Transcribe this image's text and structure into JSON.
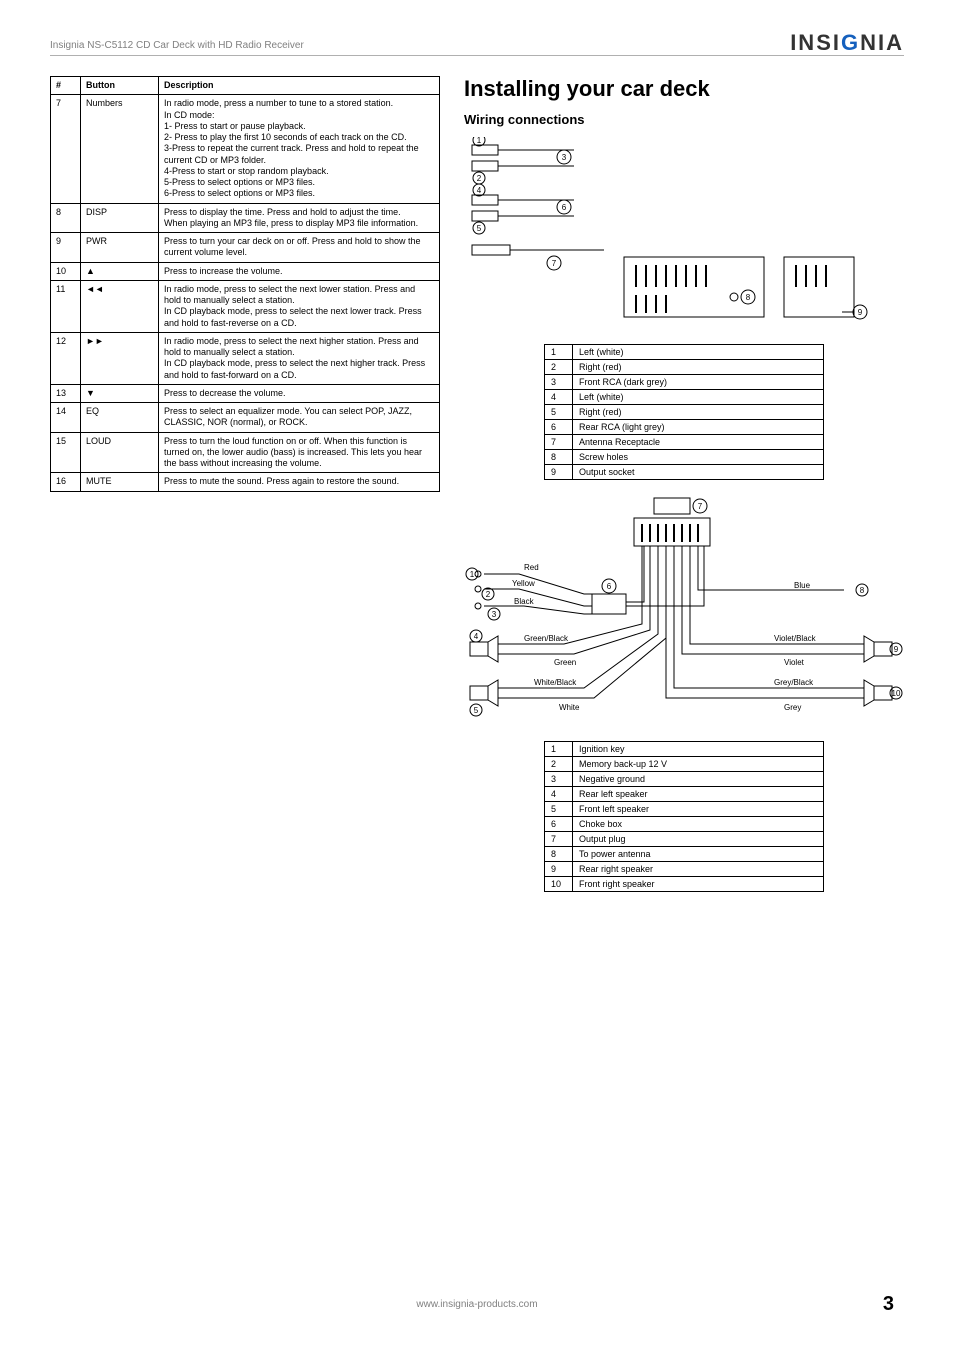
{
  "header": {
    "product_line": "Insignia NS-C5112 CD Car Deck with HD Radio Receiver",
    "brand_pre": "INSI",
    "brand_g": "G",
    "brand_post": "NIA"
  },
  "buttons_table": {
    "headers": [
      "#",
      "Button",
      "Description"
    ],
    "rows": [
      {
        "n": "7",
        "btn": "Numbers",
        "desc": "In radio mode, press a number to tune to a stored station.\nIn CD mode:\n1- Press to start or pause playback.\n2- Press to play the first 10 seconds of each track on the CD.\n3-Press to repeat the current track. Press and hold to repeat the current CD or MP3 folder.\n4-Press to start or stop random playback.\n5-Press to select options or MP3 files.\n6-Press to select options or MP3 files."
      },
      {
        "n": "8",
        "btn": "DISP",
        "desc": "Press to display the time. Press and hold to adjust the time.\nWhen playing an MP3 file, press to display MP3 file information."
      },
      {
        "n": "9",
        "btn": "PWR",
        "desc": "Press to turn your car deck on or off. Press and hold to show the current volume level."
      },
      {
        "n": "10",
        "btn": "▲",
        "desc": "Press to increase the volume."
      },
      {
        "n": "11",
        "btn": "◄◄",
        "desc": "In radio mode, press to select the next lower station. Press and hold to manually select a station.\nIn CD playback mode, press to select the next lower track. Press and hold to fast-reverse on a CD."
      },
      {
        "n": "12",
        "btn": "►►",
        "desc": "In radio mode, press to select the next higher station. Press and hold to manually select a station.\nIn CD playback mode, press to select the next higher track. Press and hold to fast-forward on a CD."
      },
      {
        "n": "13",
        "btn": "▼",
        "desc": "Press to decrease the volume."
      },
      {
        "n": "14",
        "btn": "EQ",
        "desc": "Press to select an equalizer mode. You can select POP, JAZZ, CLASSIC, NOR (normal), or ROCK."
      },
      {
        "n": "15",
        "btn": "LOUD",
        "desc": "Press to turn the loud function on or off. When this function is turned on, the lower audio (bass) is increased. This lets you hear the bass without increasing the volume."
      },
      {
        "n": "16",
        "btn": "MUTE",
        "desc": "Press to mute the sound. Press again to restore the sound."
      }
    ]
  },
  "right": {
    "title": "Installing your car deck",
    "subtitle": "Wiring connections"
  },
  "wiring_table_1": {
    "rows": [
      [
        "1",
        "Left (white)"
      ],
      [
        "2",
        "Right (red)"
      ],
      [
        "3",
        "Front RCA (dark grey)"
      ],
      [
        "4",
        "Left (white)"
      ],
      [
        "5",
        "Right (red)"
      ],
      [
        "6",
        "Rear RCA (light grey)"
      ],
      [
        "7",
        "Antenna Receptacle"
      ],
      [
        "8",
        "Screw holes"
      ],
      [
        "9",
        "Output socket"
      ]
    ]
  },
  "wiring_table_2": {
    "rows": [
      [
        "1",
        "Ignition key"
      ],
      [
        "2",
        "Memory back-up 12 V"
      ],
      [
        "3",
        "Negative ground"
      ],
      [
        "4",
        "Rear left speaker"
      ],
      [
        "5",
        "Front left speaker"
      ],
      [
        "6",
        "Choke box"
      ],
      [
        "7",
        "Output plug"
      ],
      [
        "8",
        "To power antenna"
      ],
      [
        "9",
        "Rear right speaker"
      ],
      [
        "10",
        "Front right speaker"
      ]
    ]
  },
  "diagram1": {
    "labels": {
      "l3": "3",
      "l6": "6",
      "l7": "7",
      "l8": "8",
      "l9": "9"
    }
  },
  "diagram2": {
    "wire_colors": {
      "red": "Red",
      "yellow": "Yellow",
      "black": "Black",
      "green_black": "Green/Black",
      "green": "Green",
      "white_black": "White/Black",
      "white": "White",
      "blue": "Blue",
      "violet_black": "Violet/Black",
      "violet": "Violet",
      "grey_black": "Grey/Black",
      "grey": "Grey"
    },
    "circled": {
      "c6": "6",
      "c7": "7"
    }
  },
  "colors": {
    "text": "#000000",
    "border": "#000000",
    "muted": "#808080",
    "brand_accent": "#1560bd",
    "bg": "#ffffff"
  },
  "footer": {
    "url": "www.insignia-products.com",
    "page": "3"
  }
}
